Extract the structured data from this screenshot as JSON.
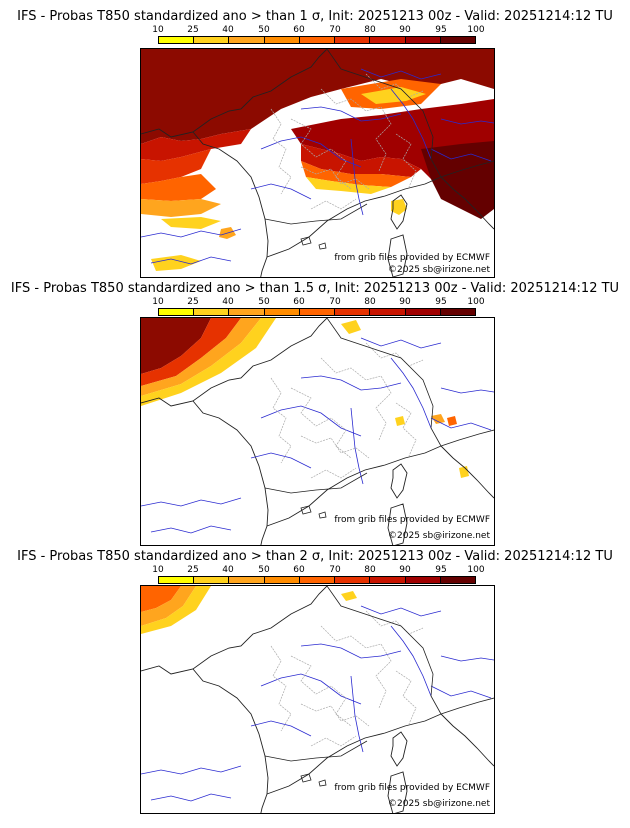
{
  "colorbar": {
    "ticks": [
      "10",
      "25",
      "40",
      "50",
      "60",
      "70",
      "80",
      "90",
      "95",
      "100"
    ],
    "colors": [
      "#ffff00",
      "#ffd21e",
      "#ffa51e",
      "#ff8c00",
      "#ff6400",
      "#e63200",
      "#c81400",
      "#a00000",
      "#640000"
    ]
  },
  "colors": {
    "coast": "#222222",
    "river": "#2a2ad0",
    "border": "#aaaaaa"
  },
  "credits": {
    "source": "from grib files provided by ECMWF",
    "copyright": "©2025 sb@irizone.net"
  },
  "panels": [
    {
      "title": "IFS - Probas T850  standardized ano > than 1 σ, Init: 20251213 00z - Valid: 20251214:12 TU",
      "threshold": "1 σ"
    },
    {
      "title": "IFS - Probas T850  standardized ano > than 1.5 σ, Init: 20251213 00z - Valid: 20251214:12 TU",
      "threshold": "1.5 σ"
    },
    {
      "title": "IFS - Probas T850  standardized ano > than 2 σ, Init: 20251213 00z - Valid: 20251214:12 TU",
      "threshold": "2 σ"
    }
  ]
}
